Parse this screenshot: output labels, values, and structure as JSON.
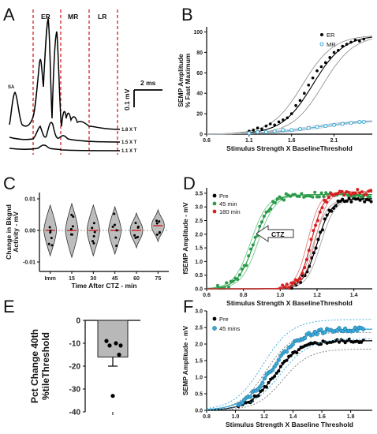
{
  "panels": {
    "A": {
      "letter": "A",
      "phase_labels": [
        "ER",
        "MR",
        "LR"
      ],
      "sa_label": "SA",
      "trace_labels": [
        "1.8 X T",
        "1.5 X T",
        "1.1 X T"
      ],
      "scale_time": "2 ms",
      "scale_amp": "0.1 mV",
      "colors": {
        "trace": "#000000",
        "divider": "#d62020"
      }
    },
    "B": {
      "letter": "B"
    },
    "C": {
      "letter": "C"
    },
    "D": {
      "letter": "D",
      "arrow_label": "CTZ"
    },
    "E": {
      "letter": "E"
    },
    "F": {
      "letter": "F"
    }
  },
  "chart_data": [
    {
      "panel": "B",
      "type": "scatter",
      "xlabel": "Stimulus Strength X BaselineThreshold",
      "ylabel": "SEMP Amplitude % Fast Maximum",
      "xticks": [
        0.6,
        1.1,
        1.6,
        2.1
      ],
      "yticks": [
        0,
        20,
        40,
        60,
        80,
        100
      ],
      "xlim": [
        0.6,
        2.55
      ],
      "ylim": [
        0,
        105
      ],
      "legend_position": "top-right",
      "series": [
        {
          "name": "ER",
          "color": "#000000",
          "x": [
            1.1,
            1.15,
            1.2,
            1.25,
            1.3,
            1.35,
            1.4,
            1.45,
            1.5,
            1.55,
            1.6,
            1.65,
            1.7,
            1.75,
            1.8,
            1.85,
            1.9,
            1.95,
            2.0,
            2.05,
            2.1,
            2.15,
            2.2,
            2.25,
            2.3,
            2.35,
            2.4,
            2.45
          ],
          "y": [
            3,
            4,
            6,
            5,
            8,
            10,
            9,
            12,
            14,
            16,
            20,
            28,
            33,
            40,
            48,
            55,
            62,
            66,
            70,
            75,
            80,
            82,
            86,
            88,
            90,
            92,
            91,
            93
          ],
          "fit": {
            "L": 97,
            "x0": 1.85,
            "k": 5.5
          }
        },
        {
          "name": "MR",
          "color": "#3aa8d8",
          "x": [
            1.1,
            1.2,
            1.3,
            1.4,
            1.5,
            1.6,
            1.7,
            1.8,
            1.9,
            2.0,
            2.1,
            2.2,
            2.3,
            2.4,
            2.45
          ],
          "y": [
            1,
            2,
            2,
            3,
            4,
            4,
            5,
            6,
            7,
            8,
            9,
            10,
            11,
            12,
            12
          ],
          "fit": {
            "L": 14,
            "x0": 1.9,
            "k": 3.5
          }
        }
      ]
    },
    {
      "panel": "C",
      "type": "violin",
      "xlabel": "Time After CTZ - min",
      "ylabel": "Change in Bkgnd Activity - mV",
      "categories": [
        "Imm",
        "15",
        "30",
        "45",
        "60",
        "75"
      ],
      "yticks": [
        -0.01,
        0.0,
        0.01
      ],
      "ytick_labels": [
        "-0.01",
        "0.00",
        "0.01"
      ],
      "ylim": [
        -0.013,
        0.012
      ],
      "medians": [
        0.0,
        0.0,
        0.0,
        0.0,
        0.0,
        0.0015
      ],
      "spread": [
        0.008,
        0.0085,
        0.008,
        0.0075,
        0.0055,
        0.005
      ]
    },
    {
      "panel": "D",
      "type": "scatter",
      "xlabel": "Stimulus Strength X BaselineThreshold",
      "ylabel": "fSEMP Amplitude - mV",
      "xticks": [
        0.6,
        0.8,
        1.0,
        1.2,
        1.4
      ],
      "yticks": [
        0.0,
        0.5,
        1.0,
        1.5,
        2.0,
        2.5,
        3.0,
        3.5
      ],
      "xlim": [
        0.6,
        1.5
      ],
      "ylim": [
        0,
        3.7
      ],
      "legend_position": "top-left",
      "series": [
        {
          "name": "Pre",
          "color": "#000000",
          "fit": {
            "L": 3.3,
            "x0": 1.2,
            "k": 26
          }
        },
        {
          "name": "45 min",
          "color": "#2c9a4a",
          "fit": {
            "L": 3.45,
            "x0": 0.86,
            "k": 22
          }
        },
        {
          "name": "180 min",
          "color": "#d62020",
          "fit": {
            "L": 3.55,
            "x0": 1.17,
            "k": 30
          }
        }
      ]
    },
    {
      "panel": "E",
      "type": "bar",
      "ylabel": "Pct Change 40th %tileThreshold",
      "yticks": [
        0,
        -10,
        -20,
        -30,
        -40
      ],
      "ylim": [
        -40,
        0
      ],
      "mean": -16,
      "sem": 4,
      "points": [
        -9,
        -10,
        -11,
        -11,
        -15,
        -33
      ]
    },
    {
      "panel": "F",
      "type": "scatter",
      "xlabel": "Stimulus Strength X Baseline Threshold",
      "ylabel": "SEMP Amplitude - mV",
      "xticks": [
        0.8,
        1.0,
        1.2,
        1.4,
        1.6,
        1.8
      ],
      "yticks": [
        0.0,
        0.5,
        1.0,
        1.5,
        2.0,
        2.5,
        3.0
      ],
      "xlim": [
        0.8,
        1.95
      ],
      "ylim": [
        0,
        3.0
      ],
      "legend_position": "top-left",
      "series": [
        {
          "name": "Pre",
          "color": "#000000",
          "fit": {
            "L": 2.1,
            "x0": 1.27,
            "k": 11
          }
        },
        {
          "name": "45 mins",
          "color": "#3aa8d8",
          "fit": {
            "L": 2.45,
            "x0": 1.25,
            "k": 10
          }
        }
      ]
    }
  ]
}
